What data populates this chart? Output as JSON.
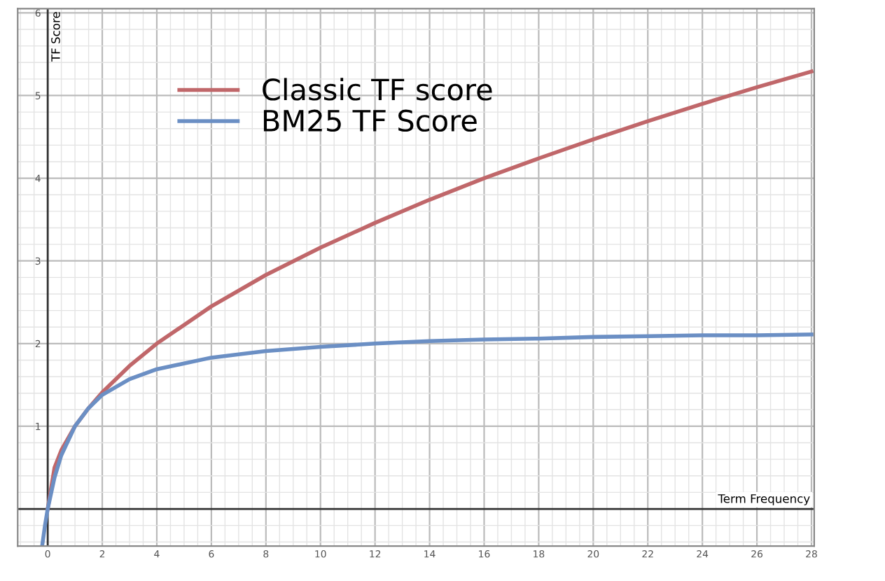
{
  "chart_data": {
    "type": "line",
    "xlabel": "Term Frequency",
    "ylabel": "TF Score",
    "xlim": [
      -1.1,
      28.1
    ],
    "ylim": [
      -0.45,
      6.05
    ],
    "xticks": [
      0,
      2,
      4,
      6,
      8,
      10,
      12,
      14,
      16,
      18,
      20,
      22,
      24,
      26,
      28
    ],
    "yticks": [
      1,
      2,
      3,
      4,
      5,
      6
    ],
    "grid": true,
    "legend": "top",
    "marker": "none",
    "line_style": "solid",
    "series": [
      {
        "name": "Classic TF score",
        "color": "#c0676a",
        "x": [
          0,
          0.25,
          0.5,
          1,
          1.5,
          2,
          3,
          4,
          6,
          8,
          10,
          12,
          14,
          16,
          18,
          20,
          22,
          24,
          26,
          28
        ],
        "values": [
          0,
          0.5,
          0.71,
          1,
          1.22,
          1.41,
          1.73,
          2,
          2.45,
          2.83,
          3.16,
          3.46,
          3.74,
          4,
          4.24,
          4.47,
          4.69,
          4.9,
          5.1,
          5.29
        ]
      },
      {
        "name": "BM25 TF Score",
        "color": "#6b8fc4",
        "x": [
          -0.2,
          -0.1,
          0,
          0.25,
          0.5,
          1,
          1.5,
          2,
          3,
          4,
          6,
          8,
          10,
          12,
          14,
          16,
          18,
          20,
          22,
          24,
          26,
          28
        ],
        "values": [
          -0.44,
          -0.2,
          0,
          0.38,
          0.65,
          1,
          1.22,
          1.38,
          1.57,
          1.69,
          1.83,
          1.91,
          1.96,
          2,
          2.03,
          2.05,
          2.06,
          2.08,
          2.09,
          2.1,
          2.1,
          2.11
        ]
      }
    ]
  }
}
